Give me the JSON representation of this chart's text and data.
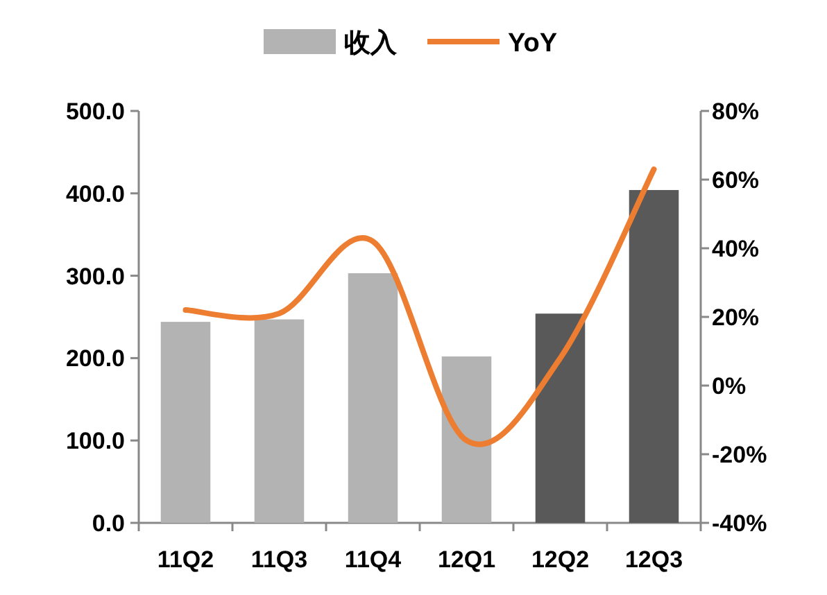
{
  "chart_data": {
    "type": "bar",
    "categories": [
      "11Q2",
      "11Q3",
      "11Q4",
      "12Q1",
      "12Q2",
      "12Q3"
    ],
    "series": [
      {
        "name": "收入",
        "color": "#b3b3b3",
        "colors": [
          "#b3b3b3",
          "#b3b3b3",
          "#b3b3b3",
          "#b3b3b3",
          "#595959",
          "#595959"
        ],
        "values": [
          244,
          247,
          303,
          202,
          254,
          404
        ]
      },
      {
        "name": "YoY",
        "type": "line",
        "axis": "y2",
        "color": "#ed7d31",
        "values": [
          22,
          21,
          42,
          -16,
          8,
          63
        ]
      }
    ],
    "ylim": [
      0,
      500
    ],
    "yticks": [
      {
        "value": 0,
        "label": "0.0"
      },
      {
        "value": 100,
        "label": "100.0"
      },
      {
        "value": 200,
        "label": "200.0"
      },
      {
        "value": 300,
        "label": "300.0"
      },
      {
        "value": 400,
        "label": "400.0"
      },
      {
        "value": 500,
        "label": "500.0"
      }
    ],
    "y2lim": [
      -40,
      80
    ],
    "y2ticks": [
      {
        "value": -40,
        "label": "-40%"
      },
      {
        "value": -20,
        "label": "-20%"
      },
      {
        "value": 0,
        "label": "0%"
      },
      {
        "value": 20,
        "label": "20%"
      },
      {
        "value": 40,
        "label": "40%"
      },
      {
        "value": 60,
        "label": "60%"
      },
      {
        "value": 80,
        "label": "80%"
      }
    ],
    "legend": "top",
    "grid": false
  }
}
